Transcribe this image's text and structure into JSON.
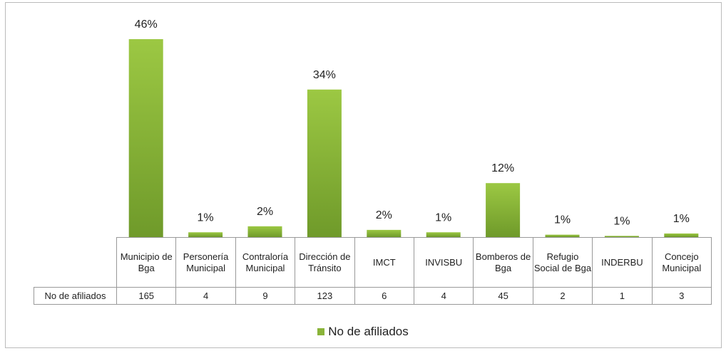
{
  "chart_data": {
    "type": "bar",
    "categories": [
      "Municipio de Bga",
      "Personería Municipal",
      "Contraloría Municipal",
      "Dirección de Tránsito",
      "IMCT",
      "INVISBU",
      "Bomberos de Bga",
      "Refugio Social de Bga",
      "INDERBU",
      "Concejo Municipal"
    ],
    "series": [
      {
        "name": "No de afiliados",
        "color": "#8ab43a",
        "values": [
          165,
          4,
          9,
          123,
          6,
          4,
          45,
          2,
          1,
          3
        ],
        "data_labels": [
          "46%",
          "1%",
          "2%",
          "34%",
          "2%",
          "1%",
          "12%",
          "1%",
          "1%",
          "1%"
        ]
      }
    ],
    "legend": "bottom",
    "data_table": true
  }
}
